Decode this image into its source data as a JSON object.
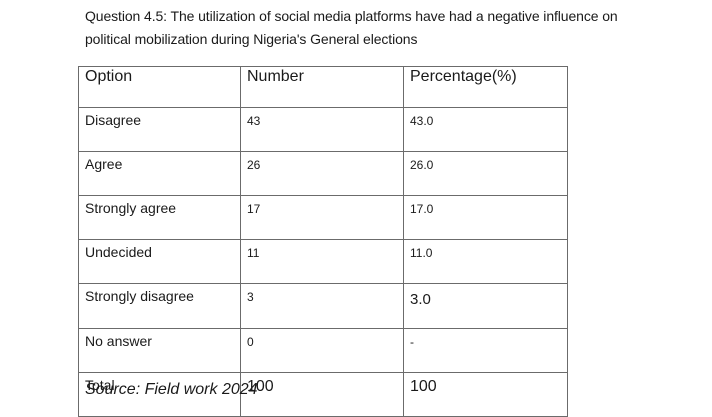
{
  "caption": {
    "line1": "Question 4.5: The utilization of social media platforms have had a negative influence on",
    "line2": "political mobilization during Nigeria's General elections"
  },
  "table": {
    "headers": [
      "Option",
      "Number",
      "Percentage(%)"
    ],
    "rows": [
      {
        "option": "Disagree",
        "number": "43",
        "percentage": "43.0"
      },
      {
        "option": "Agree",
        "number": "26",
        "percentage": "26.0"
      },
      {
        "option": "Strongly agree",
        "number": "17",
        "percentage": "17.0"
      },
      {
        "option": "Undecided",
        "number": "11",
        "percentage": "11.0"
      },
      {
        "option": "Strongly disagree",
        "number": "3",
        "percentage": "3.0"
      },
      {
        "option": "No answer",
        "number": "0",
        "percentage": "-"
      }
    ],
    "total": {
      "option": "Total",
      "number": "100",
      "percentage": "100"
    }
  },
  "source": "Source: Field work 2024"
}
